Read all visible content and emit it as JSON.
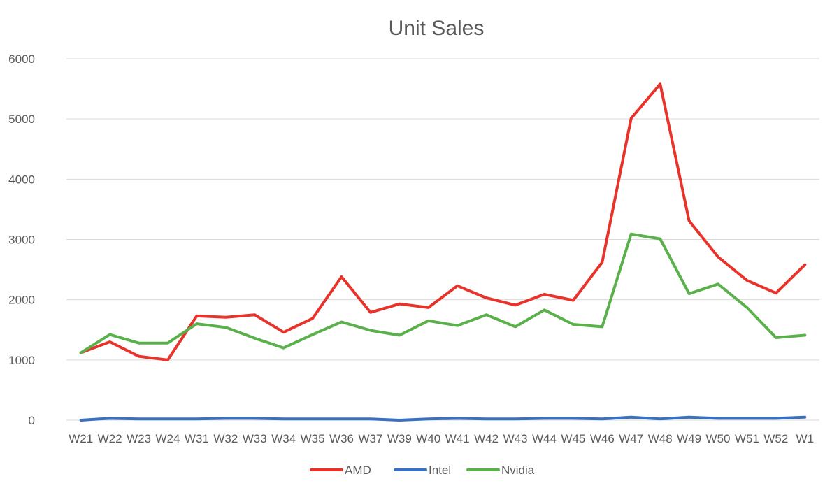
{
  "chart_data": {
    "type": "line",
    "title": "Unit Sales",
    "xlabel": "",
    "ylabel": "",
    "ylim": [
      0,
      6000
    ],
    "yticks": [
      0,
      1000,
      2000,
      3000,
      4000,
      5000,
      6000
    ],
    "grid": true,
    "legend_position": "bottom",
    "categories": [
      "W21",
      "W22",
      "W23",
      "W24",
      "W31",
      "W32",
      "W33",
      "W34",
      "W35",
      "W36",
      "W37",
      "W39",
      "W40",
      "W41",
      "W42",
      "W43",
      "W44",
      "W45",
      "W46",
      "W47",
      "W48",
      "W49",
      "W50",
      "W51",
      "W52",
      "W1"
    ],
    "series": [
      {
        "name": "AMD",
        "color": "#e8322a",
        "values": [
          1120,
          1300,
          1060,
          1000,
          1730,
          1710,
          1750,
          1460,
          1690,
          2380,
          1790,
          1930,
          1870,
          2230,
          2030,
          1910,
          2090,
          1990,
          2620,
          5010,
          5580,
          3310,
          2710,
          2320,
          2110,
          2580
        ]
      },
      {
        "name": "Intel",
        "color": "#3a70c0",
        "values": [
          0,
          30,
          20,
          20,
          20,
          30,
          30,
          20,
          20,
          20,
          20,
          0,
          20,
          30,
          20,
          20,
          30,
          30,
          20,
          50,
          20,
          50,
          30,
          30,
          30,
          50
        ]
      },
      {
        "name": "Nvidia",
        "color": "#5ab04a",
        "values": [
          1120,
          1420,
          1280,
          1280,
          1600,
          1540,
          1360,
          1200,
          1420,
          1630,
          1490,
          1410,
          1650,
          1570,
          1750,
          1550,
          1830,
          1590,
          1550,
          3090,
          3010,
          2100,
          2260,
          1870,
          1370,
          1410
        ]
      }
    ]
  }
}
